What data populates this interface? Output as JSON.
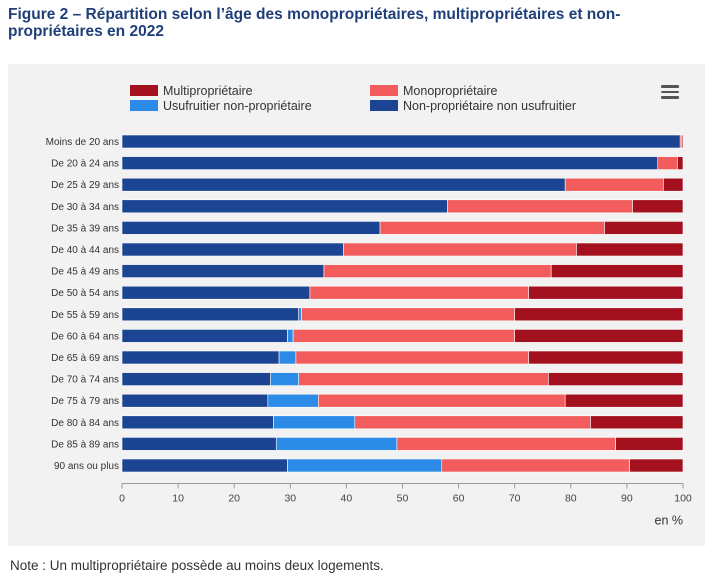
{
  "title": "Figure 2 – Répartition selon l’âge des monopropriétaires, multipropriétaires et non-propriétaires en 2022",
  "note": "Note : Un multipropriétaire possède au moins deux logements.",
  "menu_icon": "hamburger-menu-icon",
  "chart_data": {
    "type": "bar",
    "orientation": "horizontal",
    "stacked": true,
    "categories": [
      "Moins de 20 ans",
      "De 20 à 24 ans",
      "De 25 à 29 ans",
      "De 30 à 34 ans",
      "De 35 à 39 ans",
      "De 40 à 44 ans",
      "De 45 à 49 ans",
      "De 50 à 54 ans",
      "De 55 à 59 ans",
      "De 60 à 64 ans",
      "De 65 à 69 ans",
      "De 70 à 74 ans",
      "De 75 à 79 ans",
      "De 80 à 84 ans",
      "De 85 à 89 ans",
      "90 ans ou plus"
    ],
    "series": [
      {
        "name": "Non-propriétaire non usufruitier",
        "color": "#1b4592",
        "values": [
          99.5,
          95.5,
          79,
          58,
          46,
          39.5,
          36,
          33.5,
          31.5,
          29.5,
          28,
          26.5,
          26,
          27,
          27.5,
          29.5
        ]
      },
      {
        "name": "Usufruitier non-propriétaire",
        "color": "#2b8be6",
        "values": [
          0,
          0,
          0,
          0,
          0,
          0,
          0,
          0,
          0.5,
          1,
          3,
          5,
          9,
          14.5,
          21.5,
          27.5
        ]
      },
      {
        "name": "Monopropriétaire",
        "color": "#f25c5c",
        "values": [
          0.3,
          3.5,
          17.5,
          33,
          40,
          41.5,
          40.5,
          39,
          38,
          39.5,
          41.5,
          44.5,
          44,
          42,
          39,
          33.5
        ]
      },
      {
        "name": "Multipropriétaire",
        "color": "#a3101e",
        "values": [
          0.2,
          1,
          3.5,
          9,
          14,
          19,
          23.5,
          27.5,
          30,
          30,
          27.5,
          24,
          21,
          16.5,
          12,
          9.5
        ]
      }
    ],
    "legend": [
      {
        "name": "Multipropriétaire",
        "color": "#a3101e"
      },
      {
        "name": "Monopropriétaire",
        "color": "#f25c5c"
      },
      {
        "name": "Usufruitier non-propriétaire",
        "color": "#2b8be6"
      },
      {
        "name": "Non-propriétaire non usufruitier",
        "color": "#1b4592"
      }
    ],
    "legend_position": "top",
    "xlim": [
      0,
      100
    ],
    "xticks": [
      0,
      10,
      20,
      30,
      40,
      50,
      60,
      70,
      80,
      90,
      100
    ],
    "xlabel": "en %",
    "ylabel": "",
    "grid": false
  }
}
